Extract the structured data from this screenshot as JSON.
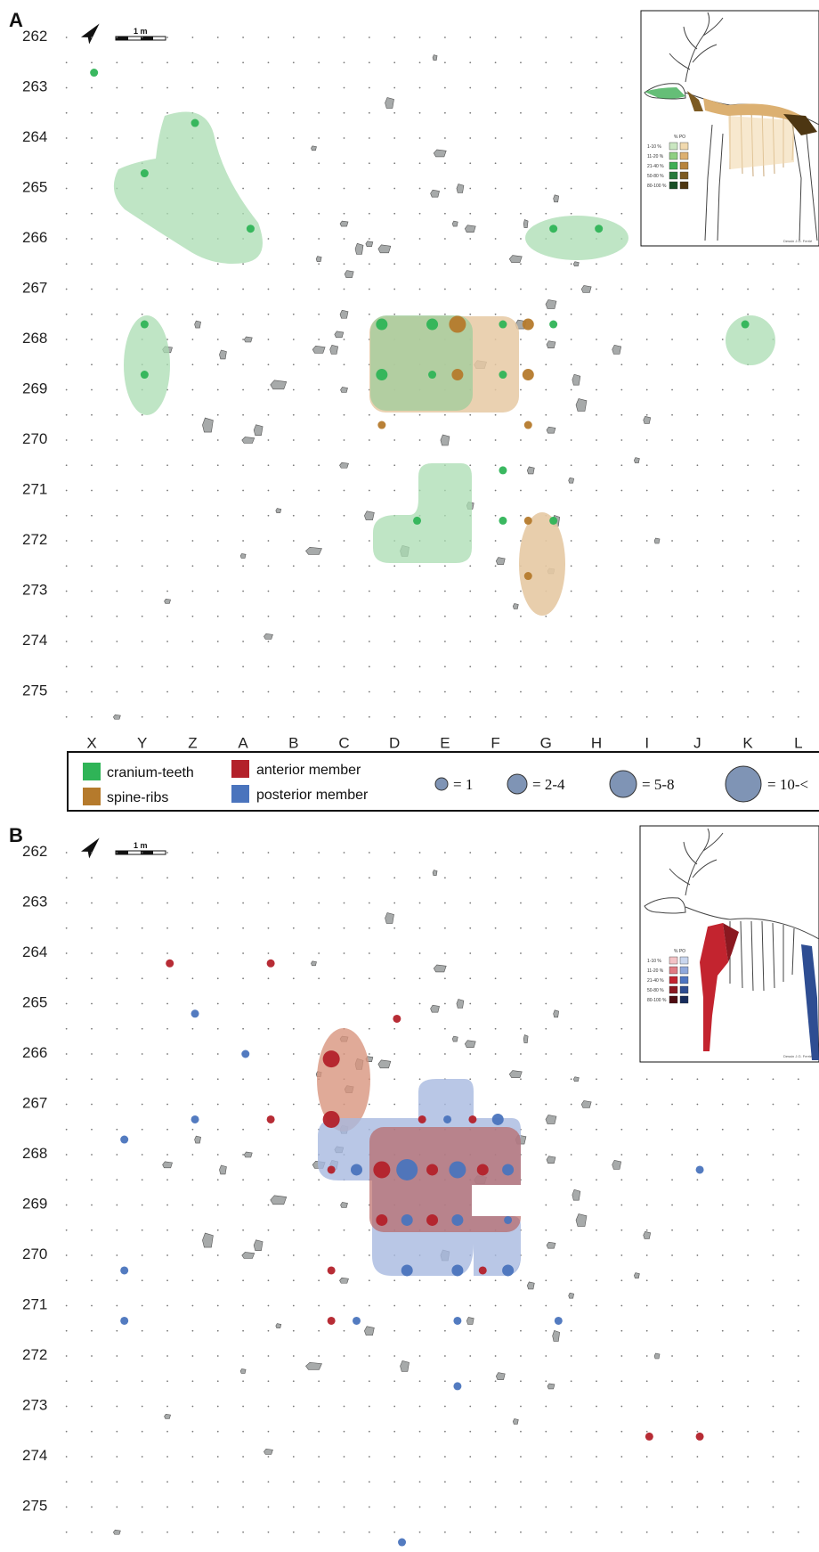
{
  "figure": {
    "panels": [
      "A",
      "B"
    ],
    "rows": [
      "262",
      "263",
      "264",
      "265",
      "266",
      "267",
      "268",
      "269",
      "270",
      "271",
      "272",
      "273",
      "274",
      "275"
    ],
    "columns": [
      "X",
      "Y",
      "Z",
      "A",
      "B",
      "C",
      "D",
      "E",
      "F",
      "G",
      "H",
      "I",
      "J",
      "K",
      "L"
    ],
    "scale_bar_label": "1 m"
  },
  "legend": {
    "categories": [
      {
        "label": "cranium-teeth",
        "color": "#2fb457"
      },
      {
        "label": "spine-ribs",
        "color": "#b57a2c"
      },
      {
        "label": "anterior member",
        "color": "#b3212a"
      },
      {
        "label": "posterior member",
        "color": "#4a74bd"
      }
    ],
    "sizes": [
      {
        "label": "= 1"
      },
      {
        "label": "= 2-4"
      },
      {
        "label": "= 5-8"
      },
      {
        "label": "= 10-<"
      }
    ]
  },
  "insets": {
    "title": "% PO",
    "classes": [
      "1-10 %",
      "11-20 %",
      "21-40 %",
      "50-80 %",
      "80-100 %"
    ],
    "credit": "Dessin J.G. Ferrié",
    "a_swatches_left": [
      "#c9e6c0",
      "#8fcf82",
      "#3fae55",
      "#287a3c",
      "#174e25"
    ],
    "a_swatches_right": [
      "#f1d9ae",
      "#dcb071",
      "#b7843d",
      "#7c5a22",
      "#4d3612"
    ],
    "b_swatches_left": [
      "#f3c3c6",
      "#e07b82",
      "#c3242f",
      "#8a1820",
      "#4e0b10"
    ],
    "b_swatches_right": [
      "#c9d6ee",
      "#8fa8db",
      "#4e75c1",
      "#2e4d92",
      "#172c5c"
    ]
  },
  "colors": {
    "cranium_zone": "#a9dcb2",
    "spine_zone": "#e6c9a3",
    "anterior_zone": "#d8957e",
    "posterior_zone": "#a8b9e0",
    "stone": "#a7aaaa"
  }
}
